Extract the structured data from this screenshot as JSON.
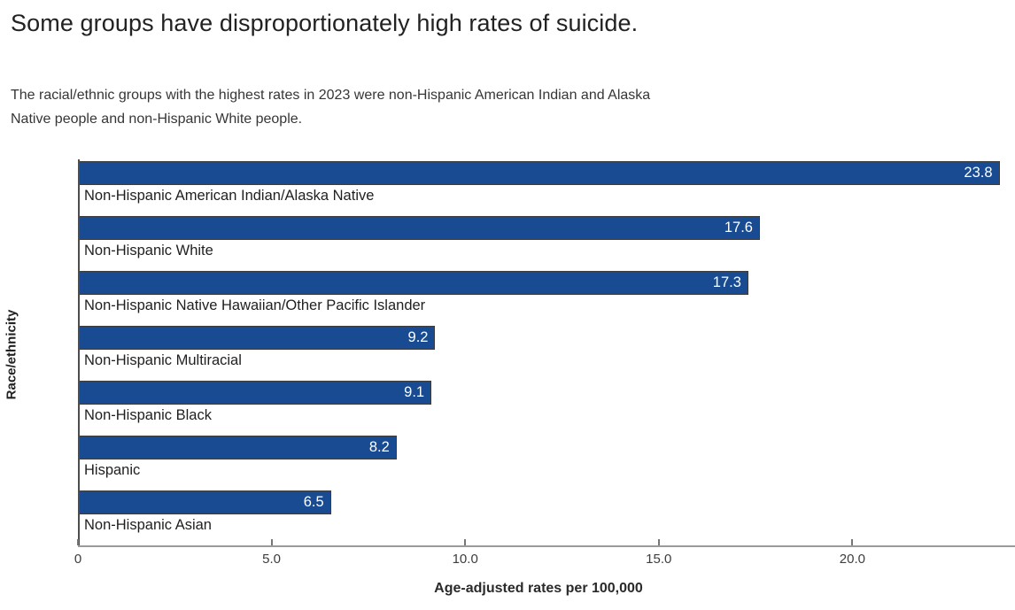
{
  "page": {
    "title": "Some groups have disproportionately high rates of suicide.",
    "subtitle": "The racial/ethnic groups with the highest rates in 2023 were non-Hispanic American Indian and Alaska Native people and non-Hispanic White people."
  },
  "chart_data": {
    "type": "bar",
    "orientation": "horizontal",
    "title": "Some groups have disproportionately high rates of suicide.",
    "subtitle": "The racial/ethnic groups with the highest rates in 2023 were non-Hispanic American Indian and Alaska Native people and non-Hispanic White people.",
    "categories": [
      "Non-Hispanic American Indian/Alaska Native",
      "Non-Hispanic White",
      "Non-Hispanic Native Hawaiian/Other Pacific Islander",
      "Non-Hispanic Multiracial",
      "Non-Hispanic Black",
      "Hispanic",
      "Non-Hispanic Asian"
    ],
    "values": [
      23.8,
      17.6,
      17.3,
      9.2,
      9.1,
      8.2,
      6.5
    ],
    "xlabel": "Age-adjusted rates per 100,000",
    "ylabel": "Race/ethnicity",
    "x_ticks": [
      {
        "value": 0,
        "label": "0"
      },
      {
        "value": 5,
        "label": "5.0"
      },
      {
        "value": 10,
        "label": "10.0"
      },
      {
        "value": 15,
        "label": "15.0"
      },
      {
        "value": 20,
        "label": "20.0"
      }
    ],
    "xlim": [
      0,
      24.2
    ],
    "grid": false,
    "legend": "none",
    "value_label_position": "inside-end",
    "colors": {
      "bar_fill": "#184b92",
      "bar_border": "#3d3d3d",
      "value_text": "#ffffff",
      "category_text": "#1f1f1f",
      "axis_line": "#9a9a9a"
    }
  }
}
